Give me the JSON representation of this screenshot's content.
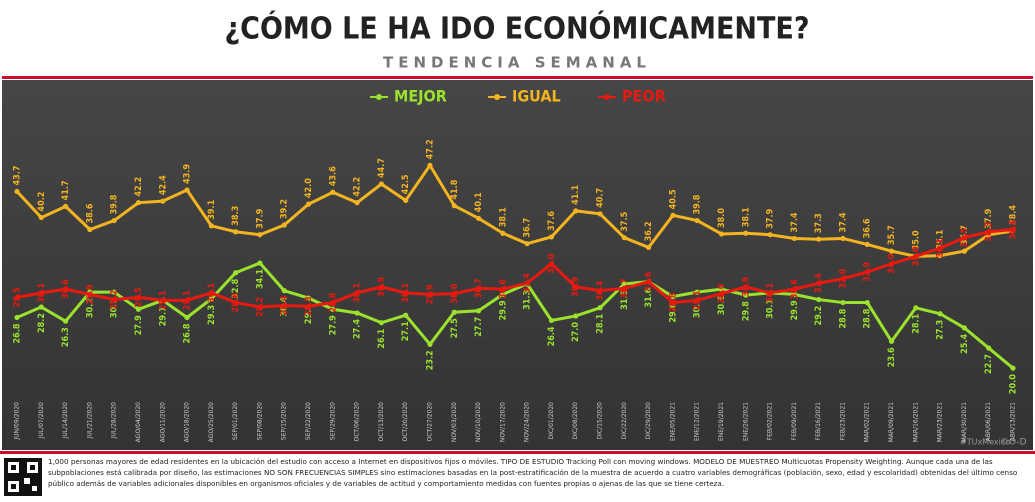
{
  "chart_data": {
    "type": "line",
    "title": "¿CÓMO LE HA IDO ECONÓMICAMENTE?",
    "subtitle": "TENDENCIA SEMANAL",
    "categories": [
      "JUN/09/2020",
      "JUL/07/2020",
      "JUL/14/2020",
      "JUL/21/2020",
      "JUL/28/2020",
      "AGO/04/2020",
      "AGO/11/2020",
      "AGO/18/2020",
      "AGO/25/2020",
      "SEP/01/2020",
      "SEP/08/2020",
      "SEP/15/2020",
      "SEP/22/2020",
      "SEP/29/2020",
      "OCT/06/2020",
      "OCT/13/2020",
      "OCT/20/2020",
      "OCT/27/2020",
      "NOV/03/2020",
      "NOV/10/2020",
      "NOV/17/2020",
      "NOV/24/2020",
      "DIC/01/2020",
      "DIC/08/2020",
      "DIC/15/2020",
      "DIC/22/2020",
      "DIC/29/2020",
      "ENE/05/2021",
      "ENE/12/2021",
      "ENE/19/2021",
      "ENE/26/2021",
      "FEB/02/2021",
      "FEB/09/2021",
      "FEB/16/2021",
      "FEB/23/2021",
      "MAR/02/2021",
      "MAR/09/2021",
      "MAR/16/2021",
      "MAR/23/2021",
      "MAR/30/2021",
      "ABR/06/2021",
      "ABR/13/2021"
    ],
    "series": [
      {
        "name": "MEJOR",
        "color": "#9be22d",
        "values": [
          26.8,
          28.2,
          26.3,
          30.2,
          30.2,
          27.9,
          29.1,
          26.8,
          29.3,
          32.8,
          34.1,
          30.4,
          29.4,
          27.9,
          27.4,
          26.1,
          27.1,
          23.2,
          27.5,
          27.7,
          29.9,
          31.3,
          26.4,
          27.0,
          28.1,
          31.3,
          31.6,
          29.6,
          30.2,
          30.6,
          29.8,
          30.1,
          29.9,
          29.2,
          28.8,
          28.8,
          23.6,
          28.1,
          27.3,
          25.4,
          22.7,
          20.0
        ],
        "value_labels": [
          "26.8",
          "28.2",
          "26.3",
          "30.2",
          "30.2",
          "27.9",
          "29.1",
          "26.8",
          "29.3",
          "32.8",
          "34.1",
          "30.4",
          "29.4",
          "27.9",
          "27.4",
          "26.1",
          "27.1",
          "23.2",
          "27.5",
          "27.7",
          "29.9",
          "31.3",
          "26.4",
          "27.0",
          "28.1",
          "31.3",
          "31.6",
          "29.6",
          "30.2",
          "30.6",
          "29.8",
          "30.1",
          "29.9",
          "29.2",
          "28.8",
          "28.8",
          "23.6",
          "28.1",
          "27.3",
          "25.4",
          "22.7",
          "20.0"
        ]
      },
      {
        "name": "IGUAL",
        "color": "#f2b420",
        "values": [
          43.7,
          40.2,
          41.7,
          38.6,
          39.8,
          42.2,
          42.4,
          43.9,
          39.1,
          38.3,
          37.9,
          39.2,
          42.0,
          43.6,
          42.2,
          44.7,
          42.5,
          47.2,
          41.8,
          40.1,
          38.1,
          36.7,
          37.6,
          41.1,
          40.7,
          37.5,
          36.2,
          40.5,
          39.8,
          38.0,
          38.1,
          37.9,
          37.4,
          37.3,
          37.4,
          36.6,
          35.7,
          35.0,
          35.1,
          35.7,
          37.9,
          38.4
        ],
        "value_labels": [
          "43.7",
          "40.2",
          "41.7",
          "38.6",
          "39.8",
          "42.2",
          "42.4",
          "43.9",
          "39.1",
          "38.3",
          "37.9",
          "39.2",
          "42.0",
          "43.6",
          "42.2",
          "44.7",
          "42.5",
          "47.2",
          "41.8",
          "40.1",
          "38.1",
          "36.7",
          "37.6",
          "41.1",
          "40.7",
          "37.5",
          "36.2",
          "40.5",
          "39.8",
          "38.0",
          "38.1",
          "37.9",
          "37.4",
          "37.3",
          "37.4",
          "36.6",
          "35.7",
          "35.0",
          "35.1",
          "35.7",
          "37.9",
          "38.4"
        ]
      },
      {
        "name": "PEOR",
        "color": "#e8190f",
        "values": [
          29.5,
          30.1,
          30.6,
          29.9,
          29.2,
          29.5,
          29.1,
          29.1,
          30.1,
          28.8,
          28.2,
          28.4,
          28.3,
          28.8,
          30.1,
          30.9,
          30.1,
          29.9,
          30.0,
          30.7,
          30.6,
          31.4,
          34.0,
          30.9,
          30.4,
          30.7,
          31.6,
          28.8,
          29.1,
          30.0,
          30.9,
          30.1,
          30.6,
          31.4,
          32.0,
          32.9,
          34.0,
          35.0,
          36.1,
          37.5,
          38.3,
          38.6
        ],
        "value_labels": [
          "29.5",
          "30.1",
          "30.6",
          "29.9",
          "29.2",
          "29.5",
          "29.1",
          "29.1",
          "30.1",
          "28.8",
          "28.2",
          "28.4",
          "28.3",
          "28.8",
          "30.1",
          "30.9",
          "30.1",
          "29.9",
          "30.0",
          "30.7",
          "30.6",
          "31.4",
          "34.0",
          "30.9",
          "30.4",
          "30.7",
          "31.6",
          "28.8",
          "29.1",
          "30.0",
          "30.9",
          "30.1",
          "30.6",
          "31.4",
          "32.0",
          "32.9",
          "34.0",
          "35.0",
          "36.1",
          "37.5",
          "38.3",
          "38.6"
        ]
      }
    ],
    "ylim": [
      16.4,
      55.3
    ],
    "legend": "top",
    "footnote": "1,000 personas mayores de edad residentes en la ubicación del estudio con acceso a Internet en dispositivos fijos o móviles. TIPO DE ESTUDIO Tracking Poll con moving windows. MODELO DE MUESTREO Multicuotas Propensity Weighting. Aunque cada una de las subpoblaciones está calibrada por diseño, las estimaciones NO SON FRECUENCIAS SIMPLES sino estimaciones basadas en la post-estratificación de la muestra de acuerdo a cuatro variables demográficas (población, sexo, edad y escolaridad) obtenidas del último censo público además de variables adicionales disponibles en organismos oficiales y de variables de actitud y comportamiento medidas con fuentes propias o ajenas de las que se tiene certeza.",
    "hashtag": "#TUxMexico",
    "brand": "©O-D"
  }
}
